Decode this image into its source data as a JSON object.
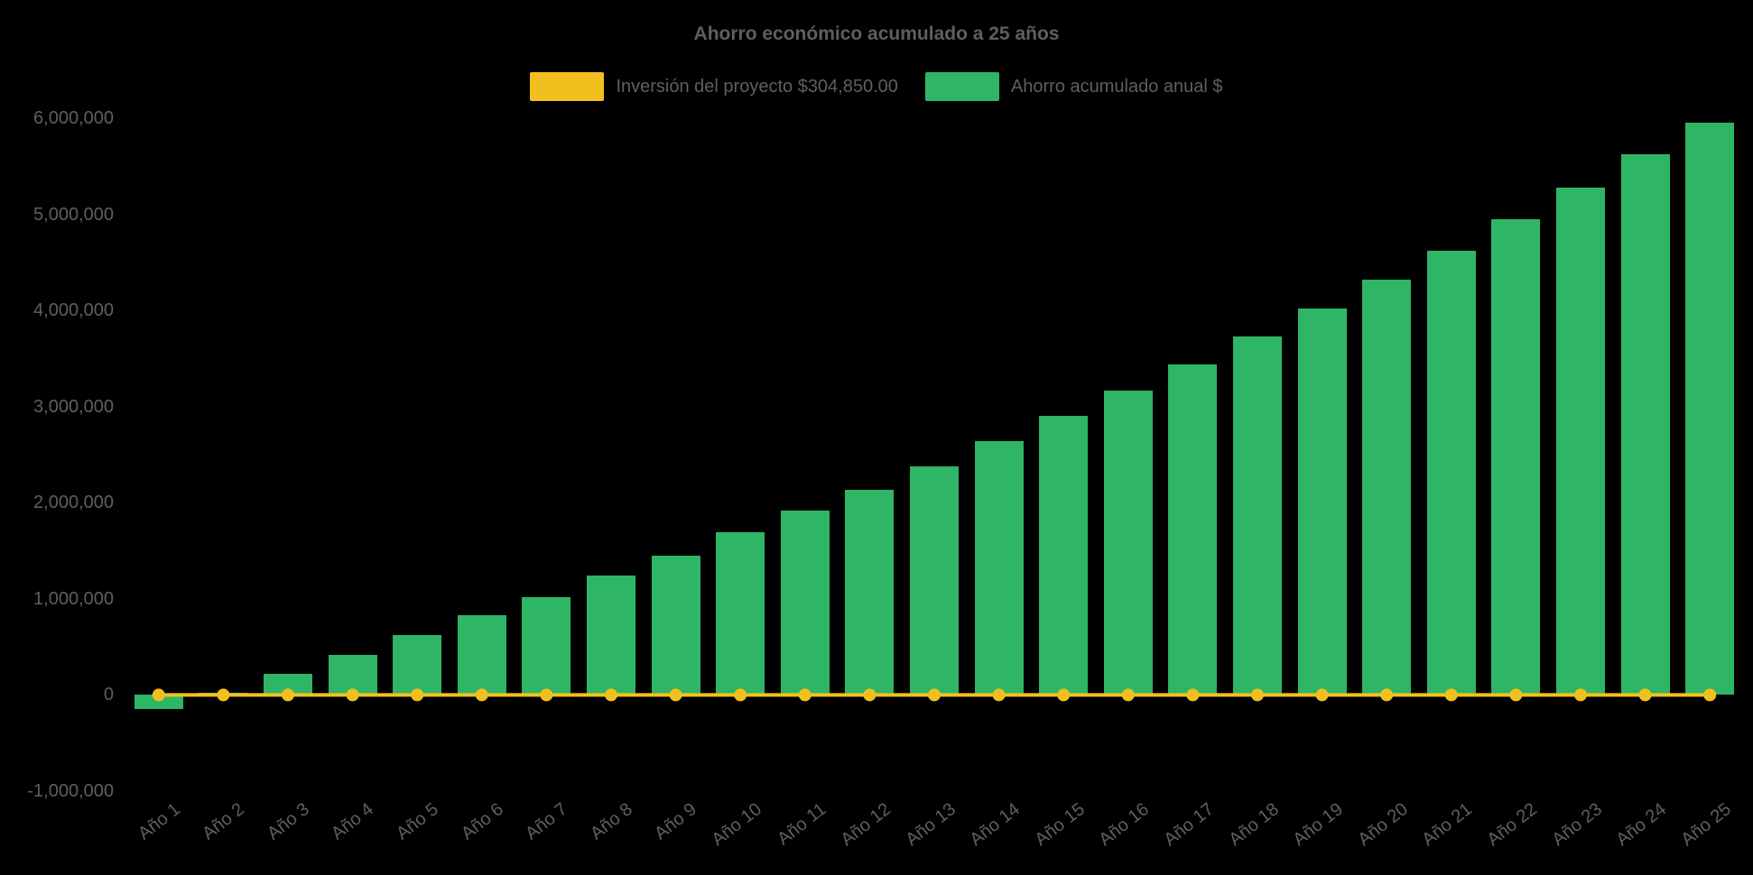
{
  "chart_data": {
    "type": "bar",
    "title": "Ahorro económico acumulado a 25 años",
    "background_color": "#000000",
    "text_color": "#5E5F61",
    "legend_position": "top",
    "grid": false,
    "ylim": [
      -1000000,
      6000000
    ],
    "y_ticks": [
      {
        "label": "6,000,000",
        "value": 6000000
      },
      {
        "label": "5,000,000",
        "value": 5000000
      },
      {
        "label": "4,000,000",
        "value": 4000000
      },
      {
        "label": "3,000,000",
        "value": 3000000
      },
      {
        "label": "2,000,000",
        "value": 2000000
      },
      {
        "label": "1,000,000",
        "value": 1000000
      },
      {
        "label": "0",
        "value": 0
      },
      {
        "label": "-1,000,000",
        "value": -1000000
      }
    ],
    "categories": [
      "Año 1",
      "Año 2",
      "Año 3",
      "Año 4",
      "Año 5",
      "Año 6",
      "Año 7",
      "Año 8",
      "Año 9",
      "Año 10",
      "Año 11",
      "Año 12",
      "Año 13",
      "Año 14",
      "Año 15",
      "Año 16",
      "Año 17",
      "Año 18",
      "Año 19",
      "Año 20",
      "Año 21",
      "Año 22",
      "Año 23",
      "Año 24",
      "Año 25"
    ],
    "series": [
      {
        "name": "Inversión del proyecto $304,850.00",
        "type": "line",
        "color": "#F2C01E",
        "marker": "circle",
        "constant_value": 0,
        "nominal_investment": 304850
      },
      {
        "name": "Ahorro acumulado anual $",
        "type": "bar",
        "color": "#2EB566",
        "values": [
          -150000,
          20000,
          220000,
          420000,
          620000,
          830000,
          1020000,
          1240000,
          1450000,
          1690000,
          1920000,
          2130000,
          2380000,
          2640000,
          2900000,
          3170000,
          3440000,
          3730000,
          4020000,
          4320000,
          4620000,
          4950000,
          5280000,
          5620000,
          5950000
        ]
      }
    ]
  }
}
